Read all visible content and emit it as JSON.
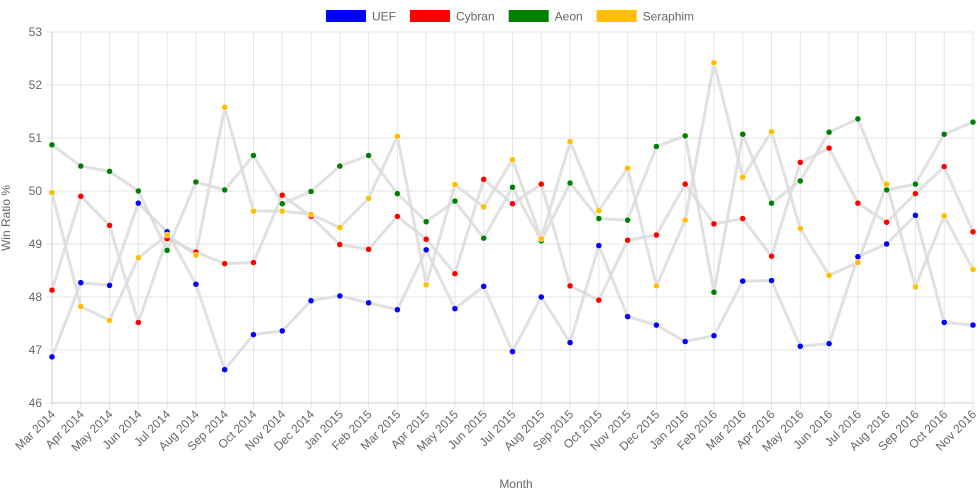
{
  "chart_data": {
    "type": "line",
    "title": "",
    "xlabel": "Month",
    "ylabel": "Win Ratio %",
    "ylim": [
      46,
      53
    ],
    "yticks": [
      "46",
      "47",
      "48",
      "49",
      "50",
      "51",
      "52",
      "53"
    ],
    "grid": true,
    "legend_position": "top",
    "line_color": "#dcdcdc",
    "categories": [
      "Mar 2014",
      "Apr 2014",
      "May 2014",
      "Jun 2014",
      "Jul 2014",
      "Aug 2014",
      "Sep 2014",
      "Oct 2014",
      "Nov 2014",
      "Dec 2014",
      "Jan 2015",
      "Feb 2015",
      "Mar 2015",
      "Apr 2015",
      "May 2015",
      "Jun 2015",
      "Jul 2015",
      "Aug 2015",
      "Sep 2015",
      "Oct 2015",
      "Nov 2015",
      "Dec 2015",
      "Jan 2016",
      "Feb 2016",
      "Mar 2016",
      "Apr 2016",
      "May 2016",
      "Jun 2016",
      "Jul 2016",
      "Aug 2016",
      "Sep 2016",
      "Oct 2016",
      "Nov 2016"
    ],
    "series": [
      {
        "name": "UEF",
        "color": "#0000ff",
        "values": [
          46.87,
          48.27,
          48.22,
          49.77,
          49.23,
          48.24,
          46.63,
          47.29,
          47.36,
          47.93,
          48.02,
          47.89,
          47.76,
          48.89,
          47.78,
          48.2,
          46.97,
          48.0,
          47.14,
          48.97,
          47.63,
          47.47,
          47.16,
          47.27,
          48.3,
          48.31,
          47.07,
          47.12,
          48.76,
          49.0,
          49.54,
          47.52,
          47.47
        ]
      },
      {
        "name": "Cybran",
        "color": "#ff0000",
        "values": [
          48.13,
          49.9,
          49.35,
          47.52,
          49.1,
          48.85,
          48.63,
          48.65,
          49.92,
          49.52,
          48.99,
          48.9,
          49.52,
          49.09,
          48.44,
          50.22,
          49.76,
          50.13,
          48.21,
          47.94,
          49.07,
          49.17,
          50.13,
          49.38,
          49.48,
          48.77,
          50.54,
          50.81,
          49.77,
          49.41,
          49.95,
          50.46,
          49.23
        ]
      },
      {
        "name": "Aeon",
        "color": "#008000",
        "values": [
          50.87,
          50.47,
          50.37,
          50.0,
          48.88,
          50.17,
          50.02,
          50.67,
          49.76,
          49.99,
          50.47,
          50.67,
          49.95,
          49.42,
          49.81,
          49.11,
          50.07,
          49.06,
          50.15,
          49.48,
          49.45,
          50.84,
          51.04,
          48.09,
          51.07,
          49.77,
          50.19,
          51.11,
          51.36,
          50.02,
          50.13,
          51.07,
          51.3
        ]
      },
      {
        "name": "Seraphim",
        "color": "#ffbf00",
        "values": [
          49.97,
          47.82,
          47.56,
          48.74,
          49.17,
          48.79,
          51.58,
          49.62,
          49.62,
          49.56,
          49.31,
          49.86,
          51.03,
          48.23,
          50.12,
          49.7,
          50.59,
          49.1,
          50.93,
          49.63,
          50.43,
          48.21,
          49.45,
          52.42,
          50.26,
          51.12,
          49.29,
          48.41,
          48.65,
          50.13,
          48.19,
          49.53,
          48.52
        ]
      }
    ]
  }
}
